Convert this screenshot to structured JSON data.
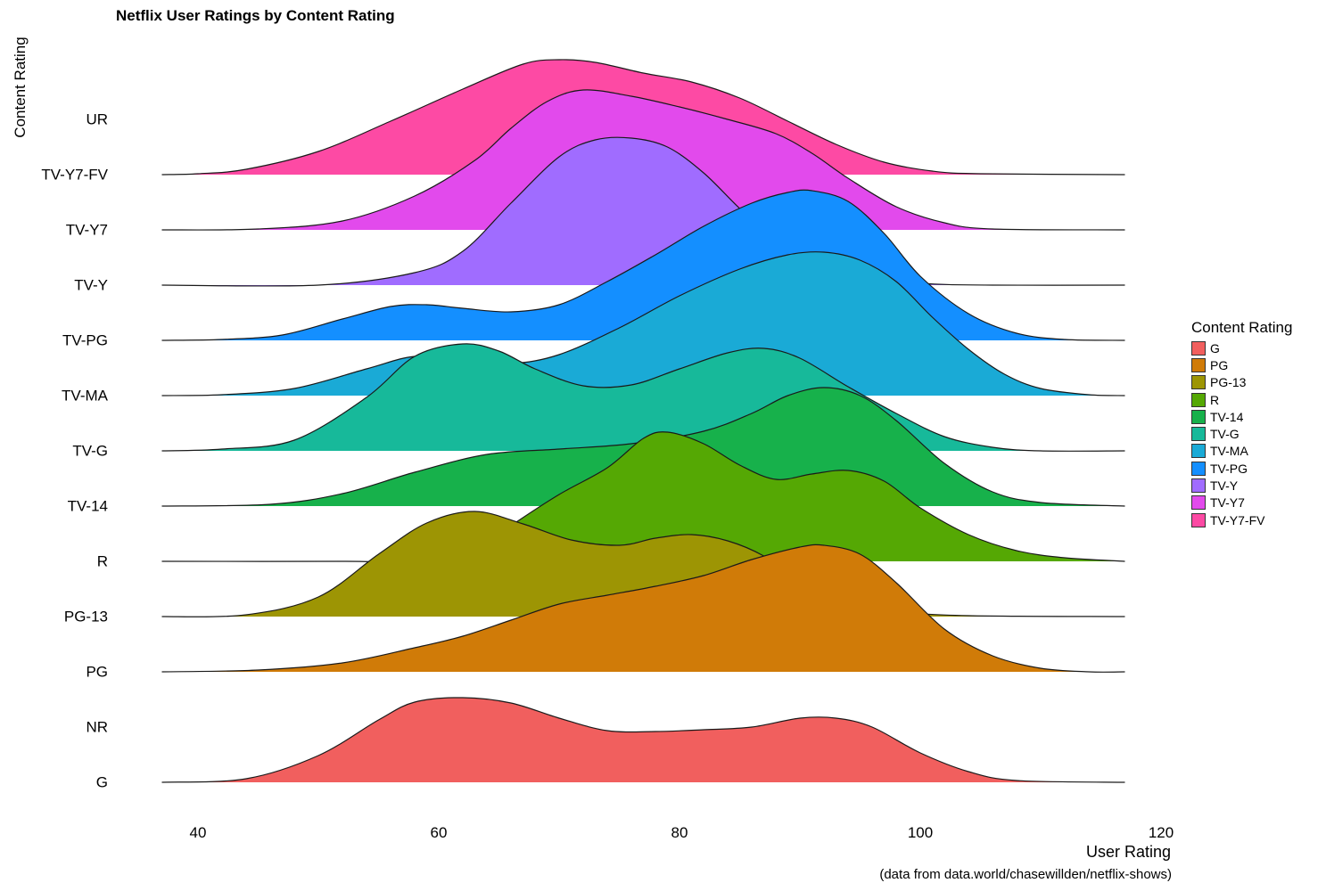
{
  "chart_data": {
    "type": "ridgeline",
    "title": "Netflix User Ratings by Content Rating",
    "xlabel": "User Rating",
    "ylabel": "Content Rating",
    "caption": "(data from data.world/chasewillden/netflix-shows)",
    "xlim": [
      37,
      117
    ],
    "xticks": [
      40,
      60,
      80,
      100,
      120
    ],
    "categories": [
      "G",
      "NR",
      "PG",
      "PG-13",
      "R",
      "TV-14",
      "TV-G",
      "TV-MA",
      "TV-PG",
      "TV-Y",
      "TV-Y7",
      "TV-Y7-FV",
      "UR"
    ],
    "legend_title": "Content Rating",
    "legend": [
      {
        "name": "G",
        "color": "#F15F5E"
      },
      {
        "name": "PG",
        "color": "#D07B08"
      },
      {
        "name": "PG-13",
        "color": "#9D9504"
      },
      {
        "name": "R",
        "color": "#55A804"
      },
      {
        "name": "TV-14",
        "color": "#17B14B"
      },
      {
        "name": "TV-G",
        "color": "#17B99A"
      },
      {
        "name": "TV-MA",
        "color": "#1AAAD6"
      },
      {
        "name": "TV-PG",
        "color": "#148FFF"
      },
      {
        "name": "TV-Y",
        "color": "#A06CFF"
      },
      {
        "name": "TV-Y7",
        "color": "#E24AEC"
      },
      {
        "name": "TV-Y7-FV",
        "color": "#FD4AA4"
      }
    ],
    "series": [
      {
        "name": "G",
        "color": "#F15F5E",
        "density": [
          [
            37,
            0
          ],
          [
            44,
            0.04
          ],
          [
            50,
            0.3
          ],
          [
            55,
            0.7
          ],
          [
            58,
            0.9
          ],
          [
            62,
            0.95
          ],
          [
            66,
            0.89
          ],
          [
            70,
            0.72
          ],
          [
            74,
            0.58
          ],
          [
            78,
            0.57
          ],
          [
            82,
            0.59
          ],
          [
            86,
            0.62
          ],
          [
            90,
            0.72
          ],
          [
            93,
            0.72
          ],
          [
            96,
            0.62
          ],
          [
            100,
            0.33
          ],
          [
            104,
            0.12
          ],
          [
            108,
            0.02
          ],
          [
            117,
            0
          ]
        ]
      },
      {
        "name": "PG",
        "color": "#D07B08",
        "density": [
          [
            37,
            0
          ],
          [
            45,
            0.02
          ],
          [
            52,
            0.1
          ],
          [
            58,
            0.27
          ],
          [
            62,
            0.4
          ],
          [
            66,
            0.58
          ],
          [
            70,
            0.76
          ],
          [
            74,
            0.86
          ],
          [
            78,
            0.96
          ],
          [
            82,
            1.08
          ],
          [
            86,
            1.26
          ],
          [
            90,
            1.4
          ],
          [
            92,
            1.42
          ],
          [
            95,
            1.32
          ],
          [
            98,
            1.0
          ],
          [
            102,
            0.48
          ],
          [
            106,
            0.18
          ],
          [
            110,
            0.04
          ],
          [
            114,
            0
          ],
          [
            117,
            0
          ]
        ]
      },
      {
        "name": "PG-13",
        "color": "#9D9504",
        "density": [
          [
            37,
            0
          ],
          [
            44,
            0.02
          ],
          [
            50,
            0.22
          ],
          [
            55,
            0.7
          ],
          [
            59,
            1.05
          ],
          [
            63,
            1.18
          ],
          [
            67,
            1.04
          ],
          [
            71,
            0.86
          ],
          [
            75,
            0.8
          ],
          [
            78,
            0.88
          ],
          [
            81,
            0.92
          ],
          [
            84,
            0.85
          ],
          [
            87,
            0.68
          ],
          [
            90,
            0.4
          ],
          [
            94,
            0.18
          ],
          [
            98,
            0.06
          ],
          [
            104,
            0.01
          ],
          [
            117,
            0
          ]
        ]
      },
      {
        "name": "R",
        "color": "#55A804",
        "density": [
          [
            37,
            0
          ],
          [
            52,
            0
          ],
          [
            62,
            0.02
          ],
          [
            66,
            0.4
          ],
          [
            70,
            0.75
          ],
          [
            74,
            1.05
          ],
          [
            77,
            1.38
          ],
          [
            79,
            1.45
          ],
          [
            82,
            1.32
          ],
          [
            85,
            1.08
          ],
          [
            88,
            0.92
          ],
          [
            91,
            0.98
          ],
          [
            94,
            1.02
          ],
          [
            97,
            0.9
          ],
          [
            100,
            0.6
          ],
          [
            104,
            0.3
          ],
          [
            108,
            0.12
          ],
          [
            112,
            0.04
          ],
          [
            117,
            0
          ]
        ]
      },
      {
        "name": "TV-14",
        "color": "#17B14B",
        "density": [
          [
            37,
            0
          ],
          [
            46,
            0.02
          ],
          [
            52,
            0.14
          ],
          [
            58,
            0.38
          ],
          [
            64,
            0.58
          ],
          [
            70,
            0.64
          ],
          [
            76,
            0.7
          ],
          [
            82,
            0.84
          ],
          [
            86,
            1.04
          ],
          [
            89,
            1.24
          ],
          [
            92,
            1.33
          ],
          [
            95,
            1.24
          ],
          [
            98,
            0.96
          ],
          [
            102,
            0.48
          ],
          [
            106,
            0.16
          ],
          [
            110,
            0.04
          ],
          [
            117,
            0
          ]
        ]
      },
      {
        "name": "TV-G",
        "color": "#17B99A",
        "density": [
          [
            37,
            0
          ],
          [
            42,
            0.02
          ],
          [
            48,
            0.12
          ],
          [
            54,
            0.6
          ],
          [
            58,
            1.06
          ],
          [
            62,
            1.2
          ],
          [
            65,
            1.12
          ],
          [
            68,
            0.92
          ],
          [
            72,
            0.73
          ],
          [
            76,
            0.74
          ],
          [
            80,
            0.92
          ],
          [
            84,
            1.1
          ],
          [
            87,
            1.15
          ],
          [
            90,
            1.04
          ],
          [
            94,
            0.72
          ],
          [
            98,
            0.42
          ],
          [
            102,
            0.16
          ],
          [
            106,
            0.04
          ],
          [
            110,
            0
          ],
          [
            117,
            0
          ]
        ]
      },
      {
        "name": "TV-MA",
        "color": "#1AAAD6",
        "density": [
          [
            37,
            0
          ],
          [
            42,
            0.01
          ],
          [
            48,
            0.08
          ],
          [
            54,
            0.3
          ],
          [
            58,
            0.44
          ],
          [
            62,
            0.4
          ],
          [
            66,
            0.36
          ],
          [
            70,
            0.46
          ],
          [
            75,
            0.76
          ],
          [
            80,
            1.12
          ],
          [
            85,
            1.42
          ],
          [
            89,
            1.58
          ],
          [
            92,
            1.61
          ],
          [
            95,
            1.52
          ],
          [
            98,
            1.28
          ],
          [
            101,
            0.88
          ],
          [
            104,
            0.52
          ],
          [
            107,
            0.24
          ],
          [
            110,
            0.08
          ],
          [
            114,
            0.01
          ],
          [
            117,
            0
          ]
        ]
      },
      {
        "name": "TV-PG",
        "color": "#148FFF",
        "density": [
          [
            37,
            0
          ],
          [
            42,
            0.01
          ],
          [
            47,
            0.06
          ],
          [
            52,
            0.24
          ],
          [
            56,
            0.38
          ],
          [
            59,
            0.4
          ],
          [
            62,
            0.36
          ],
          [
            66,
            0.32
          ],
          [
            70,
            0.4
          ],
          [
            74,
            0.66
          ],
          [
            78,
            0.96
          ],
          [
            82,
            1.28
          ],
          [
            86,
            1.54
          ],
          [
            89,
            1.66
          ],
          [
            91,
            1.68
          ],
          [
            94,
            1.56
          ],
          [
            97,
            1.2
          ],
          [
            100,
            0.72
          ],
          [
            104,
            0.3
          ],
          [
            108,
            0.08
          ],
          [
            112,
            0.01
          ],
          [
            117,
            0
          ]
        ]
      },
      {
        "name": "TV-Y",
        "color": "#A06CFF",
        "density": [
          [
            37,
            0
          ],
          [
            50,
            0
          ],
          [
            58,
            0.14
          ],
          [
            62,
            0.38
          ],
          [
            66,
            0.92
          ],
          [
            70,
            1.44
          ],
          [
            73,
            1.63
          ],
          [
            76,
            1.65
          ],
          [
            79,
            1.55
          ],
          [
            82,
            1.26
          ],
          [
            85,
            0.86
          ],
          [
            88,
            0.5
          ],
          [
            91,
            0.26
          ],
          [
            95,
            0.1
          ],
          [
            100,
            0.02
          ],
          [
            106,
            0
          ],
          [
            117,
            0
          ]
        ]
      },
      {
        "name": "TV-Y7",
        "color": "#E24AEC",
        "density": [
          [
            37,
            0
          ],
          [
            45,
            0.01
          ],
          [
            52,
            0.1
          ],
          [
            58,
            0.38
          ],
          [
            63,
            0.78
          ],
          [
            66,
            1.14
          ],
          [
            69,
            1.44
          ],
          [
            72,
            1.57
          ],
          [
            76,
            1.5
          ],
          [
            80,
            1.38
          ],
          [
            84,
            1.24
          ],
          [
            88,
            1.08
          ],
          [
            91,
            0.86
          ],
          [
            94,
            0.58
          ],
          [
            98,
            0.26
          ],
          [
            102,
            0.08
          ],
          [
            106,
            0.01
          ],
          [
            117,
            0
          ]
        ]
      },
      {
        "name": "TV-Y7-FV",
        "color": "#FD4AA4",
        "density": [
          [
            37,
            0
          ],
          [
            40,
            0.01
          ],
          [
            44,
            0.06
          ],
          [
            50,
            0.26
          ],
          [
            56,
            0.6
          ],
          [
            62,
            0.96
          ],
          [
            67,
            1.24
          ],
          [
            70,
            1.29
          ],
          [
            73,
            1.26
          ],
          [
            77,
            1.14
          ],
          [
            81,
            1.04
          ],
          [
            85,
            0.86
          ],
          [
            89,
            0.6
          ],
          [
            93,
            0.34
          ],
          [
            97,
            0.14
          ],
          [
            101,
            0.04
          ],
          [
            105,
            0.01
          ],
          [
            117,
            0
          ]
        ]
      }
    ]
  }
}
